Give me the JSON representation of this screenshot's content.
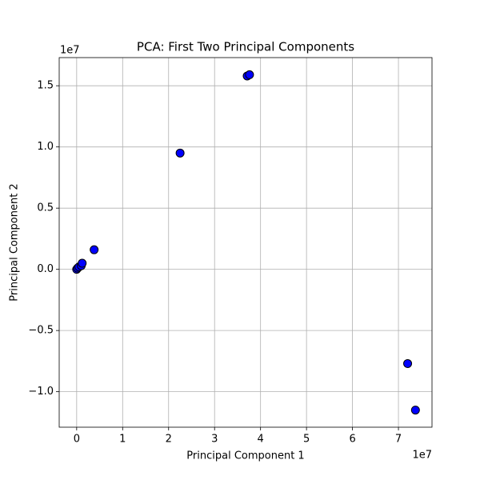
{
  "chart_data": {
    "type": "scatter",
    "title": "PCA: First Two Principal Components",
    "x_label": "Principal Component 1",
    "y_label": "Principal Component 2",
    "x_offset_label": "1e7",
    "y_offset_label": "1e7",
    "series": [
      {
        "color": "#0000ff",
        "edge_color": "#000000",
        "x": [
          0,
          0.02,
          0.05,
          0.1,
          0.12,
          0.38,
          2.25,
          3.71,
          3.76,
          7.2,
          7.37
        ],
        "values": [
          0,
          0.01,
          0.02,
          0.03,
          0.05,
          0.16,
          0.95,
          1.58,
          1.59,
          -0.77,
          -1.15
        ]
      }
    ],
    "xlim": [
      -0.38,
      7.73
    ],
    "xticks": [
      0,
      1,
      2,
      3,
      4,
      5,
      6,
      7
    ],
    "ylim": [
      -1.29,
      1.73
    ],
    "yticks": [
      {
        "value": -1,
        "label": "−1.0"
      },
      {
        "value": -0.5,
        "label": "−0.5"
      },
      {
        "value": 0,
        "label": "0.0"
      },
      0.5,
      {
        "value": 1,
        "label": "1.0"
      },
      1.5
    ],
    "grid": true
  }
}
